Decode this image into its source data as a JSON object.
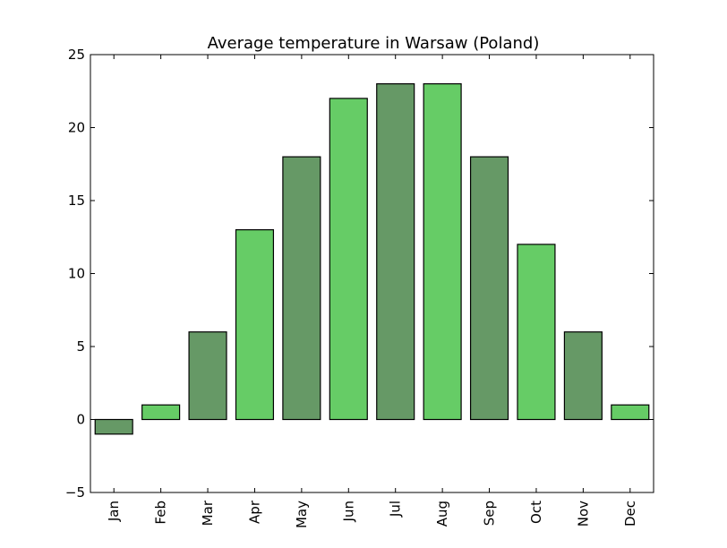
{
  "chart_data": {
    "type": "bar",
    "title": "Average temperature in Warsaw (Poland)",
    "xlabel": "",
    "ylabel": "",
    "categories": [
      "Jan",
      "Feb",
      "Mar",
      "Apr",
      "May",
      "Jun",
      "Jul",
      "Aug",
      "Sep",
      "Oct",
      "Nov",
      "Dec"
    ],
    "values": [
      -1,
      1,
      6,
      13,
      18,
      22,
      23,
      23,
      18,
      12,
      6,
      1
    ],
    "ylim": [
      -5,
      25
    ],
    "yticks": [
      -5,
      0,
      5,
      10,
      15,
      20,
      25
    ],
    "grid": false,
    "legend": "none",
    "bar_colors": [
      "#669966",
      "#66cc66"
    ],
    "edge_color": "#000000"
  }
}
